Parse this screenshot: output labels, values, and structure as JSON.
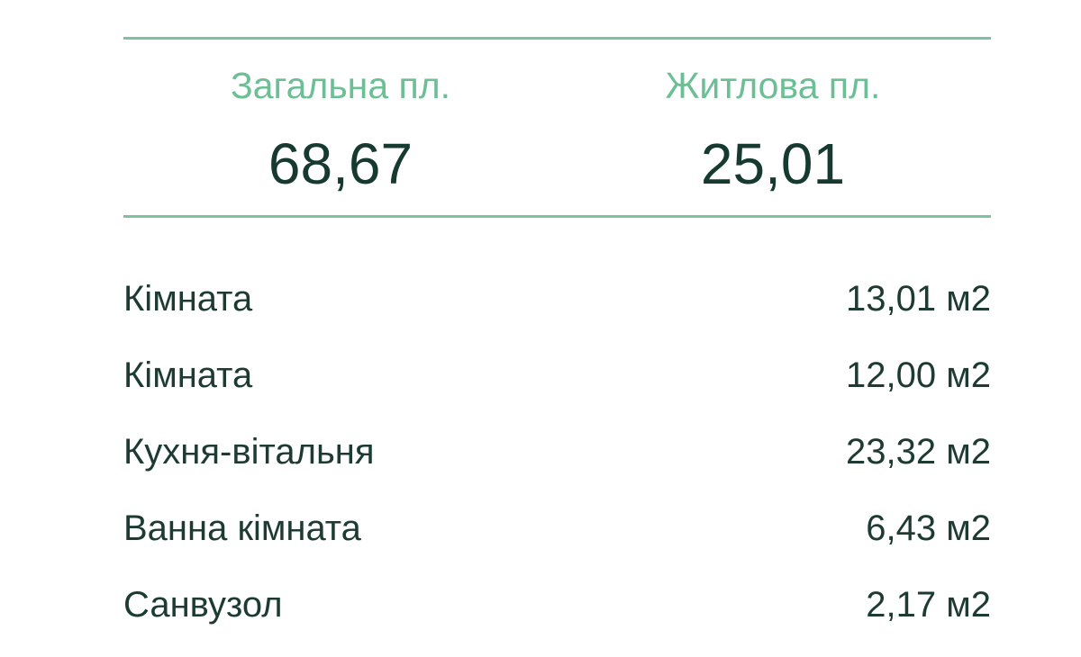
{
  "summary": {
    "total": {
      "label": "Загальна пл.",
      "value": "68,67"
    },
    "living": {
      "label": "Житлова пл.",
      "value": "25,01"
    }
  },
  "rooms": [
    {
      "name": "Кімната",
      "area": "13,01 м2"
    },
    {
      "name": "Кімната",
      "area": "12,00 м2"
    },
    {
      "name": "Кухня-вітальня",
      "area": "23,32 м2"
    },
    {
      "name": "Ванна кімната",
      "area": "6,43 м2"
    },
    {
      "name": "Санвузол",
      "area": "2,17 м2"
    }
  ],
  "colors": {
    "accent": "#6cbf94",
    "divider": "#7cc4a0",
    "text": "#163a30"
  }
}
